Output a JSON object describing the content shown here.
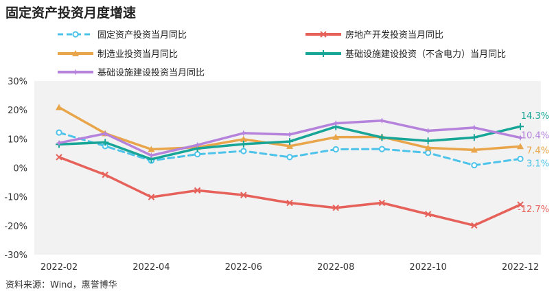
{
  "title": "固定资产投资月度增速",
  "source": "资料来源：Wind，惠誉博华",
  "chart_data": {
    "type": "line",
    "categories": [
      "2022-02",
      "2022-03",
      "2022-04",
      "2022-05",
      "2022-06",
      "2022-07",
      "2022-08",
      "2022-09",
      "2022-10",
      "2022-11",
      "2022-12"
    ],
    "x_tick_labels": [
      "2022-02",
      "",
      "2022-04",
      "",
      "2022-06",
      "",
      "2022-08",
      "",
      "2022-10",
      "",
      "2022-12"
    ],
    "y_ticks": [
      30,
      20,
      10,
      0,
      -10,
      -20,
      -30
    ],
    "y_tick_labels": [
      "30%",
      "20%",
      "10%",
      "0%",
      "-10%",
      "-20%",
      "-30%"
    ],
    "ylim": [
      -30,
      30
    ],
    "grid": false,
    "plot_background": "#f2f2f2",
    "legend_position": "top",
    "series": [
      {
        "name": "固定资产投资当月同比",
        "color": "#4dc3ea",
        "style": "dashed",
        "marker": "circle",
        "values": [
          12.2,
          7.5,
          2.5,
          4.7,
          5.8,
          3.7,
          6.4,
          6.5,
          5.2,
          0.9,
          3.1
        ],
        "end_label": "3.1%"
      },
      {
        "name": "房地产开发投资当月同比",
        "color": "#e5615a",
        "style": "solid",
        "marker": "x",
        "values": [
          3.7,
          -2.4,
          -10.1,
          -7.8,
          -9.4,
          -12.1,
          -13.8,
          -12.1,
          -16.0,
          -19.9,
          -12.7
        ],
        "end_label": "-12.7%"
      },
      {
        "name": "制造业投资当月同比",
        "color": "#e8a54a",
        "style": "solid",
        "marker": "triangle",
        "values": [
          20.9,
          11.9,
          6.4,
          7.1,
          9.9,
          7.5,
          10.6,
          10.7,
          6.9,
          6.2,
          7.4
        ],
        "end_label": "7.4%"
      },
      {
        "name": "基础设施建设投资（不含电力）当月同比",
        "color": "#17a597",
        "style": "solid",
        "marker": "plus",
        "values": [
          8.1,
          8.8,
          3.0,
          6.7,
          8.2,
          9.1,
          14.2,
          10.5,
          9.3,
          10.5,
          14.3
        ],
        "end_label": "14.3%"
      },
      {
        "name": "基础设施建设投资当月同比",
        "color": "#b583dc",
        "style": "solid",
        "marker": "star",
        "values": [
          8.6,
          11.8,
          4.3,
          7.9,
          12.0,
          11.5,
          15.4,
          16.3,
          12.8,
          13.9,
          10.4
        ],
        "end_label": "10.4%"
      }
    ]
  }
}
